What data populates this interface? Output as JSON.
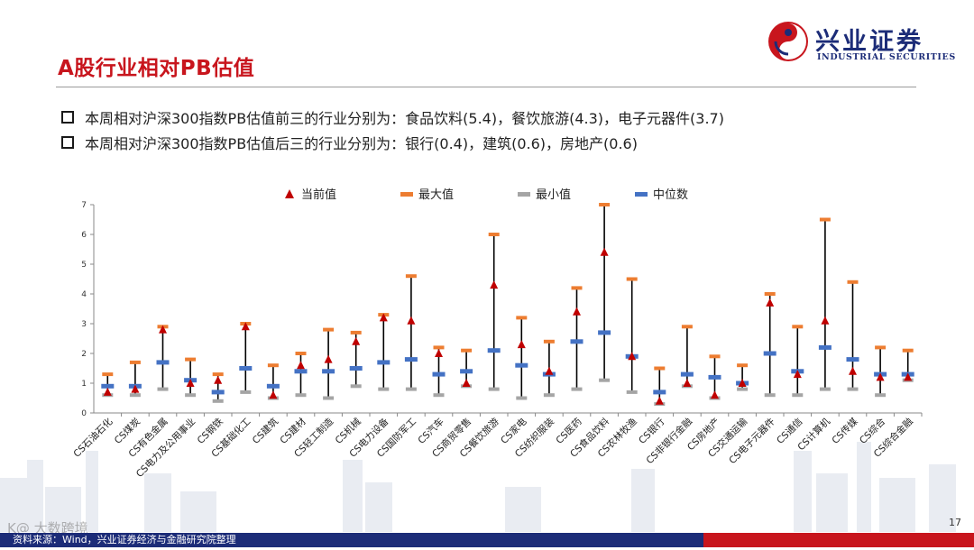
{
  "header": {
    "title": "A股行业相对PB估值",
    "logo_cn": "兴业证券",
    "logo_en": "INDUSTRIAL SECURITIES"
  },
  "bullets": [
    "本周相对沪深300指数PB估值前三的行业分别为：食品饮料(5.4)，餐饮旅游(4.3)，电子元器件(3.7)",
    "本周相对沪深300指数PB估值后三的行业分别为：银行(0.4)，建筑(0.6)，房地产(0.6)"
  ],
  "footer": {
    "source": "资料来源：Wind，兴业证券经济与金融研究院整理",
    "page_number": "17",
    "watermark": "K@ 大数跨境"
  },
  "colors": {
    "accent_red": "#c8151d",
    "brand_blue": "#1c2c78",
    "current": "#c00000",
    "max": "#ed7d31",
    "min": "#a5a5a5",
    "median": "#4472c4"
  },
  "chart_data": {
    "type": "scatter",
    "title": "",
    "xlabel": "",
    "ylabel": "",
    "ylim": [
      0,
      7
    ],
    "yticks": [
      0,
      1,
      2,
      3,
      4,
      5,
      6,
      7
    ],
    "legend": {
      "position": "top",
      "entries": [
        "当前值",
        "最大值",
        "最小值",
        "中位数"
      ]
    },
    "categories": [
      "CS石油石化",
      "CS煤炭",
      "CS有色金属",
      "CS电力及公用事业",
      "CS钢铁",
      "CS基础化工",
      "CS建筑",
      "CS建材",
      "CS轻工制造",
      "CS机械",
      "CS电力设备",
      "CS国防军工",
      "CS汽车",
      "CS商贸零售",
      "CS餐饮旅游",
      "CS家电",
      "CS纺织服装",
      "CS医药",
      "CS食品饮料",
      "CS农林牧渔",
      "CS银行",
      "CS非银行金融",
      "CS房地产",
      "CS交通运输",
      "CS电子元器件",
      "CS通信",
      "CS计算机",
      "CS传媒",
      "CS综合",
      "CS综合金融"
    ],
    "series": [
      {
        "name": "当前值",
        "values": [
          0.7,
          0.8,
          2.8,
          1.0,
          1.1,
          2.9,
          0.6,
          1.6,
          1.8,
          2.4,
          3.2,
          3.1,
          2.0,
          1.0,
          4.3,
          2.3,
          1.4,
          3.4,
          5.4,
          1.9,
          0.4,
          1.0,
          0.6,
          1.0,
          3.7,
          1.3,
          3.1,
          1.4,
          1.2,
          1.2
        ]
      },
      {
        "name": "最大值",
        "values": [
          1.3,
          1.7,
          2.9,
          1.8,
          1.3,
          3.0,
          1.6,
          2.0,
          2.8,
          2.7,
          3.3,
          4.6,
          2.2,
          2.1,
          6.0,
          3.2,
          2.4,
          4.2,
          7.3,
          4.5,
          1.5,
          2.9,
          1.9,
          1.6,
          4.0,
          2.9,
          6.5,
          4.4,
          2.2,
          2.1
        ]
      },
      {
        "name": "最小值",
        "values": [
          0.6,
          0.6,
          0.8,
          0.6,
          0.4,
          0.7,
          0.5,
          0.6,
          0.5,
          0.9,
          0.8,
          0.8,
          0.6,
          0.9,
          0.8,
          0.5,
          0.6,
          0.8,
          1.1,
          0.7,
          0.3,
          0.9,
          0.5,
          0.8,
          0.6,
          0.6,
          0.8,
          0.8,
          0.6,
          1.1
        ]
      },
      {
        "name": "中位数",
        "values": [
          0.9,
          0.9,
          1.7,
          1.1,
          0.7,
          1.5,
          0.9,
          1.4,
          1.4,
          1.5,
          1.7,
          1.8,
          1.3,
          1.4,
          2.1,
          1.6,
          1.3,
          2.4,
          2.7,
          1.9,
          0.7,
          1.3,
          1.2,
          1.0,
          2.0,
          1.4,
          2.2,
          1.8,
          1.3,
          1.3
        ]
      }
    ]
  }
}
